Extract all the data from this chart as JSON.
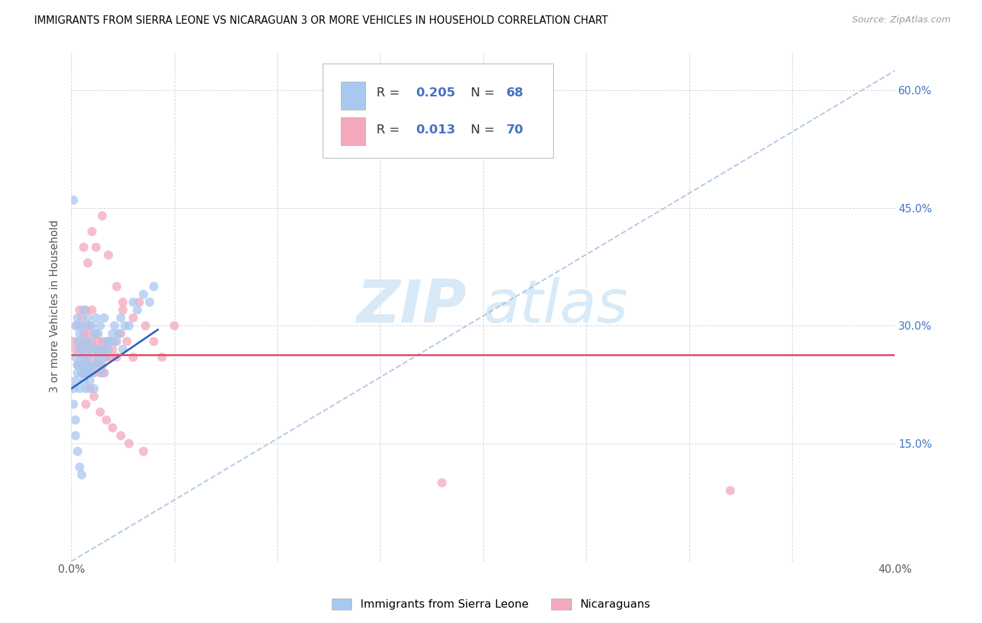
{
  "title": "IMMIGRANTS FROM SIERRA LEONE VS NICARAGUAN 3 OR MORE VEHICLES IN HOUSEHOLD CORRELATION CHART",
  "source": "Source: ZipAtlas.com",
  "ylabel": "3 or more Vehicles in Household",
  "x_min": 0.0,
  "x_max": 0.4,
  "y_min": 0.0,
  "y_max": 0.65,
  "x_ticks": [
    0.0,
    0.05,
    0.1,
    0.15,
    0.2,
    0.25,
    0.3,
    0.35,
    0.4
  ],
  "y_ticks": [
    0.0,
    0.15,
    0.3,
    0.45,
    0.6
  ],
  "y_tick_labels_right": [
    "",
    "15.0%",
    "30.0%",
    "45.0%",
    "60.0%"
  ],
  "color_blue": "#a8c8f0",
  "color_pink": "#f4a8bc",
  "color_blue_line": "#3060c0",
  "color_pink_line": "#e05070",
  "color_dashed_line": "#a0bce0",
  "watermark_zip": "ZIP",
  "watermark_atlas": "atlas",
  "watermark_color": "#d8eaf8",
  "sierra_leone_x": [
    0.001,
    0.001,
    0.002,
    0.002,
    0.002,
    0.003,
    0.003,
    0.003,
    0.003,
    0.004,
    0.004,
    0.004,
    0.004,
    0.005,
    0.005,
    0.005,
    0.006,
    0.006,
    0.006,
    0.006,
    0.007,
    0.007,
    0.007,
    0.007,
    0.008,
    0.008,
    0.008,
    0.009,
    0.009,
    0.009,
    0.01,
    0.01,
    0.01,
    0.011,
    0.011,
    0.011,
    0.012,
    0.012,
    0.013,
    0.013,
    0.014,
    0.014,
    0.015,
    0.015,
    0.016,
    0.016,
    0.017,
    0.018,
    0.019,
    0.02,
    0.021,
    0.022,
    0.023,
    0.024,
    0.025,
    0.026,
    0.028,
    0.03,
    0.032,
    0.035,
    0.038,
    0.04,
    0.001,
    0.002,
    0.002,
    0.003,
    0.004,
    0.005
  ],
  "sierra_leone_y": [
    0.22,
    0.2,
    0.26,
    0.3,
    0.23,
    0.25,
    0.28,
    0.24,
    0.31,
    0.27,
    0.25,
    0.29,
    0.22,
    0.26,
    0.3,
    0.24,
    0.25,
    0.28,
    0.32,
    0.23,
    0.24,
    0.27,
    0.3,
    0.22,
    0.26,
    0.31,
    0.24,
    0.23,
    0.28,
    0.25,
    0.27,
    0.3,
    0.24,
    0.25,
    0.29,
    0.22,
    0.27,
    0.31,
    0.26,
    0.29,
    0.25,
    0.3,
    0.24,
    0.27,
    0.26,
    0.31,
    0.28,
    0.27,
    0.28,
    0.29,
    0.3,
    0.28,
    0.29,
    0.31,
    0.27,
    0.3,
    0.3,
    0.33,
    0.32,
    0.34,
    0.33,
    0.35,
    0.46,
    0.18,
    0.16,
    0.14,
    0.12,
    0.11
  ],
  "nicaraguan_x": [
    0.001,
    0.002,
    0.003,
    0.003,
    0.004,
    0.004,
    0.005,
    0.005,
    0.005,
    0.006,
    0.006,
    0.006,
    0.007,
    0.007,
    0.007,
    0.008,
    0.008,
    0.008,
    0.009,
    0.009,
    0.01,
    0.01,
    0.01,
    0.011,
    0.011,
    0.012,
    0.012,
    0.013,
    0.013,
    0.014,
    0.014,
    0.015,
    0.015,
    0.016,
    0.016,
    0.017,
    0.018,
    0.019,
    0.02,
    0.021,
    0.022,
    0.024,
    0.025,
    0.027,
    0.03,
    0.033,
    0.036,
    0.04,
    0.044,
    0.05,
    0.006,
    0.008,
    0.01,
    0.012,
    0.015,
    0.018,
    0.022,
    0.025,
    0.03,
    0.18,
    0.32,
    0.007,
    0.009,
    0.011,
    0.014,
    0.017,
    0.02,
    0.024,
    0.028,
    0.035
  ],
  "nicaraguan_y": [
    0.28,
    0.27,
    0.3,
    0.25,
    0.28,
    0.32,
    0.24,
    0.27,
    0.31,
    0.26,
    0.29,
    0.24,
    0.25,
    0.28,
    0.32,
    0.26,
    0.29,
    0.24,
    0.27,
    0.3,
    0.25,
    0.28,
    0.32,
    0.24,
    0.27,
    0.26,
    0.29,
    0.25,
    0.28,
    0.24,
    0.27,
    0.25,
    0.28,
    0.24,
    0.27,
    0.26,
    0.28,
    0.26,
    0.27,
    0.28,
    0.26,
    0.29,
    0.32,
    0.28,
    0.26,
    0.33,
    0.3,
    0.28,
    0.26,
    0.3,
    0.4,
    0.38,
    0.42,
    0.4,
    0.44,
    0.39,
    0.35,
    0.33,
    0.31,
    0.1,
    0.09,
    0.2,
    0.22,
    0.21,
    0.19,
    0.18,
    0.17,
    0.16,
    0.15,
    0.14
  ],
  "sl_line_x0": 0.0,
  "sl_line_y0": 0.22,
  "sl_line_x1": 0.042,
  "sl_line_y1": 0.295,
  "ni_line_y": 0.263,
  "dash_line_x0": 0.0,
  "dash_line_y0": 0.0,
  "dash_line_x1": 0.4,
  "dash_line_y1": 0.625
}
